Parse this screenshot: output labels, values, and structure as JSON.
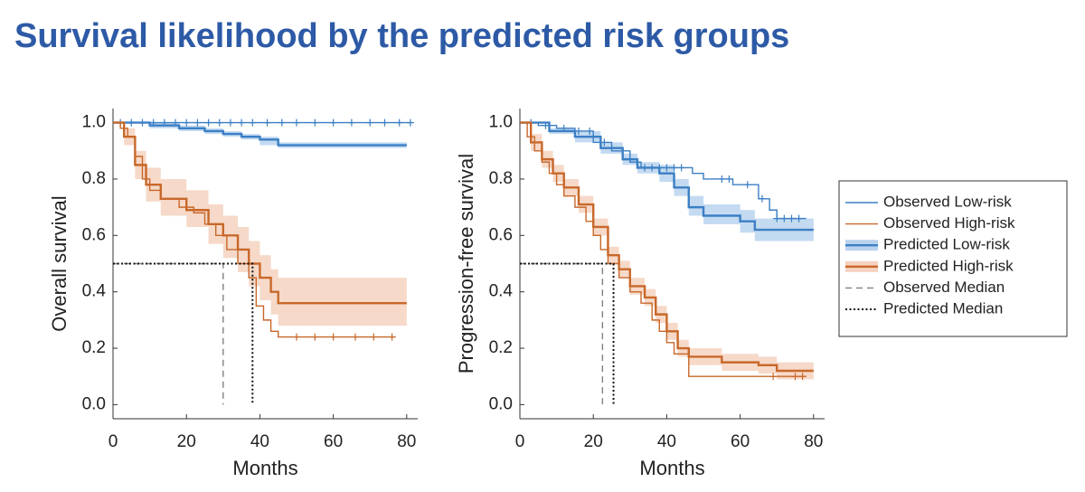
{
  "header": {
    "title": "Survival likelihood by the predicted risk groups"
  },
  "chart_data": [
    {
      "type": "line",
      "step": true,
      "xlabel": "Months",
      "ylabel": "Overall survival",
      "xlim": [
        0,
        83
      ],
      "ylim": [
        -0.05,
        1.05
      ],
      "xticks": [
        0,
        20,
        40,
        60,
        80
      ],
      "yticks": [
        {
          "value": 0,
          "label": "0.0"
        },
        0.2,
        0.4,
        0.6,
        0.8,
        {
          "value": 1,
          "label": "1.0"
        }
      ],
      "series": [
        {
          "name": "Observed Low-risk",
          "color": "#3b7fc4",
          "style": "thin",
          "x": [
            0,
            81
          ],
          "values": [
            1,
            1
          ],
          "censored": {
            "x": [
              2,
              5,
              8,
              11,
              14,
              17,
              20,
              23,
              26,
              29,
              32,
              35,
              38,
              42,
              46,
              50,
              55,
              60,
              65,
              70,
              74,
              78,
              81
            ],
            "values": [
              1,
              1,
              1,
              1,
              1,
              1,
              1,
              1,
              1,
              1,
              1,
              1,
              1,
              1,
              1,
              1,
              1,
              1,
              1,
              1,
              1,
              1,
              1
            ]
          }
        },
        {
          "name": "Observed High-risk",
          "color": "#c8682a",
          "style": "thin",
          "x": [
            0,
            2,
            4,
            6,
            8,
            10,
            13,
            18,
            22,
            25,
            28,
            31,
            34,
            37,
            39,
            41,
            43,
            45,
            77
          ],
          "values": [
            1,
            0.98,
            0.95,
            0.88,
            0.8,
            0.76,
            0.73,
            0.7,
            0.68,
            0.64,
            0.6,
            0.55,
            0.5,
            0.45,
            0.35,
            0.3,
            0.26,
            0.24,
            0.24
          ],
          "censored": {
            "x": [
              50,
              55,
              60,
              66,
              71,
              76
            ],
            "values": [
              0.24,
              0.24,
              0.24,
              0.24,
              0.24,
              0.24
            ]
          }
        },
        {
          "name": "Predicted Low-risk",
          "color": "#3b7fc4",
          "band_color": "#b9d3ee",
          "style": "thick",
          "x": [
            0,
            10,
            18,
            25,
            30,
            35,
            40,
            45,
            80
          ],
          "values": [
            1,
            0.99,
            0.98,
            0.97,
            0.96,
            0.95,
            0.94,
            0.92,
            0.92
          ],
          "lower": [
            1,
            0.98,
            0.97,
            0.96,
            0.95,
            0.94,
            0.92,
            0.91,
            0.91
          ],
          "upper": [
            1,
            1,
            0.99,
            0.98,
            0.97,
            0.96,
            0.95,
            0.93,
            0.93
          ]
        },
        {
          "name": "Predicted High-risk",
          "color": "#c8682a",
          "band_color": "#f5d2bf",
          "style": "thick",
          "x": [
            0,
            3,
            6,
            9,
            13,
            20,
            26,
            30,
            34,
            37,
            40,
            43,
            45,
            80
          ],
          "values": [
            1,
            0.95,
            0.85,
            0.78,
            0.73,
            0.69,
            0.64,
            0.6,
            0.55,
            0.5,
            0.45,
            0.4,
            0.36,
            0.36
          ],
          "lower": [
            1,
            0.92,
            0.8,
            0.72,
            0.67,
            0.63,
            0.57,
            0.52,
            0.47,
            0.42,
            0.37,
            0.32,
            0.28,
            0.28
          ],
          "upper": [
            1,
            0.98,
            0.9,
            0.84,
            0.8,
            0.76,
            0.71,
            0.67,
            0.63,
            0.58,
            0.53,
            0.48,
            0.45,
            0.45
          ]
        },
        {
          "name": "Observed Median",
          "color": "#808080",
          "style": "dashed",
          "x": [
            0,
            30,
            30
          ],
          "values": [
            0.5,
            0.5,
            0
          ]
        },
        {
          "name": "Predicted Median",
          "color": "#111111",
          "style": "dotted",
          "x": [
            0,
            38,
            38
          ],
          "values": [
            0.5,
            0.5,
            0
          ]
        }
      ]
    },
    {
      "type": "line",
      "step": true,
      "xlabel": "Months",
      "ylabel": "Progression-free survival",
      "xlim": [
        0,
        83
      ],
      "ylim": [
        -0.05,
        1.05
      ],
      "xticks": [
        0,
        20,
        40,
        60,
        80
      ],
      "yticks": [
        {
          "value": 0,
          "label": "0.0"
        },
        0.2,
        0.4,
        0.6,
        0.8,
        {
          "value": 1,
          "label": "1.0"
        }
      ],
      "series": [
        {
          "name": "Observed Low-risk",
          "color": "#3b7fc4",
          "style": "thin",
          "x": [
            0,
            5,
            10,
            15,
            20,
            25,
            30,
            33,
            47,
            50,
            58,
            65,
            68,
            70,
            78
          ],
          "values": [
            1,
            0.99,
            0.98,
            0.97,
            0.93,
            0.9,
            0.86,
            0.84,
            0.82,
            0.8,
            0.78,
            0.73,
            0.69,
            0.66,
            0.66
          ],
          "censored": {
            "x": [
              3,
              7,
              12,
              16,
              19,
              23,
              34,
              36,
              38,
              40,
              42,
              44,
              55,
              57,
              62,
              66,
              70,
              72,
              74,
              76
            ],
            "values": [
              1,
              0.99,
              0.98,
              0.97,
              0.97,
              0.93,
              0.84,
              0.84,
              0.84,
              0.84,
              0.84,
              0.84,
              0.8,
              0.8,
              0.78,
              0.73,
              0.66,
              0.66,
              0.66,
              0.66
            ]
          }
        },
        {
          "name": "Observed High-risk",
          "color": "#c8682a",
          "style": "thin",
          "x": [
            0,
            2,
            4,
            6,
            8,
            10,
            12,
            15,
            18,
            20,
            22,
            24,
            27,
            30,
            33,
            36,
            38,
            40,
            42,
            46,
            78
          ],
          "values": [
            1,
            0.95,
            0.9,
            0.86,
            0.82,
            0.78,
            0.74,
            0.7,
            0.65,
            0.6,
            0.55,
            0.5,
            0.45,
            0.4,
            0.36,
            0.3,
            0.26,
            0.22,
            0.18,
            0.1,
            0.1
          ],
          "censored": {
            "x": [
              69,
              75,
              77
            ],
            "values": [
              0.1,
              0.1,
              0.1
            ]
          }
        },
        {
          "name": "Predicted Low-risk",
          "color": "#3b7fc4",
          "band_color": "#b9d3ee",
          "style": "thick",
          "x": [
            0,
            8,
            15,
            22,
            28,
            32,
            38,
            42,
            46,
            50,
            60,
            64,
            80
          ],
          "values": [
            1,
            0.97,
            0.95,
            0.91,
            0.87,
            0.84,
            0.82,
            0.77,
            0.7,
            0.67,
            0.65,
            0.62,
            0.62
          ],
          "lower": [
            1,
            0.96,
            0.93,
            0.89,
            0.85,
            0.82,
            0.79,
            0.74,
            0.67,
            0.64,
            0.61,
            0.58,
            0.58
          ],
          "upper": [
            1,
            0.98,
            0.97,
            0.93,
            0.89,
            0.86,
            0.85,
            0.8,
            0.74,
            0.71,
            0.69,
            0.66,
            0.66
          ]
        },
        {
          "name": "Predicted High-risk",
          "color": "#c8682a",
          "band_color": "#f5d2bf",
          "style": "thick",
          "x": [
            0,
            3,
            6,
            9,
            12,
            16,
            20,
            24,
            27,
            30,
            34,
            37,
            40,
            43,
            46,
            55,
            65,
            70,
            80
          ],
          "values": [
            1,
            0.93,
            0.87,
            0.82,
            0.77,
            0.71,
            0.63,
            0.53,
            0.48,
            0.42,
            0.38,
            0.32,
            0.26,
            0.2,
            0.17,
            0.15,
            0.14,
            0.12,
            0.12
          ],
          "lower": [
            1,
            0.9,
            0.84,
            0.79,
            0.74,
            0.68,
            0.6,
            0.5,
            0.45,
            0.39,
            0.35,
            0.29,
            0.23,
            0.17,
            0.14,
            0.12,
            0.11,
            0.09,
            0.09
          ],
          "upper": [
            1,
            0.96,
            0.9,
            0.85,
            0.8,
            0.74,
            0.66,
            0.56,
            0.51,
            0.45,
            0.41,
            0.35,
            0.29,
            0.23,
            0.2,
            0.18,
            0.17,
            0.15,
            0.15
          ]
        },
        {
          "name": "Observed Median",
          "color": "#808080",
          "style": "dashed",
          "x": [
            0,
            22.5,
            22.5
          ],
          "values": [
            0.5,
            0.5,
            0
          ]
        },
        {
          "name": "Predicted Median",
          "color": "#111111",
          "style": "dotted",
          "x": [
            0,
            25.5,
            25.5
          ],
          "values": [
            0.5,
            0.5,
            0
          ]
        }
      ]
    }
  ]
}
